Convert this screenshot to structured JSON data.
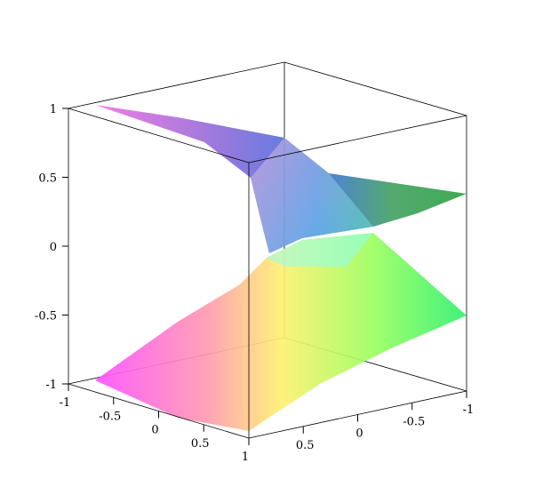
{
  "chart_data": {
    "type": "surface3d",
    "zlim": [
      -1,
      1
    ],
    "zticks": [
      -1,
      -0.5,
      0,
      0.5,
      1
    ],
    "xlim": [
      -1,
      1
    ],
    "xticks": [
      -1,
      -0.5,
      0,
      0.5,
      1
    ],
    "ylim": [
      1,
      -1
    ],
    "yticks": [
      0.5,
      0,
      -0.5,
      -1
    ]
  }
}
